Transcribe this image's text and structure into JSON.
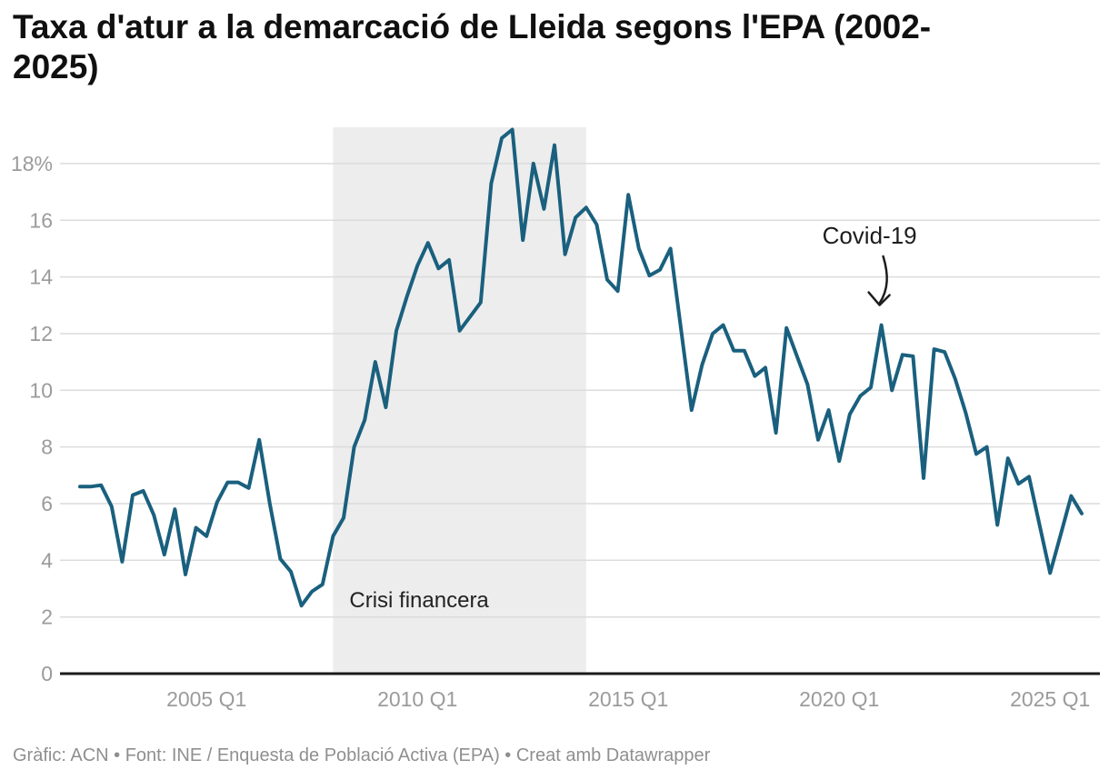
{
  "header": {
    "title_line1": "Taxa d'atur a la demarcació de Lleida segons l'EPA (2002-",
    "title_line2": "2025)"
  },
  "footer": {
    "text": "Gràfic: ACN • Font: INE / Enquesta de Població Activa (EPA) • Creat amb Datawrapper"
  },
  "chart_data": {
    "type": "line",
    "title": "Taxa d'atur a la demarcació de Lleida segons l'EPA (2002-2025)",
    "unit": "%",
    "x": [
      "2002 Q1",
      "2002 Q2",
      "2002 Q3",
      "2002 Q4",
      "2003 Q1",
      "2003 Q2",
      "2003 Q3",
      "2003 Q4",
      "2004 Q1",
      "2004 Q2",
      "2004 Q3",
      "2004 Q4",
      "2005 Q1",
      "2005 Q2",
      "2005 Q3",
      "2005 Q4",
      "2006 Q1",
      "2006 Q2",
      "2006 Q3",
      "2006 Q4",
      "2007 Q1",
      "2007 Q2",
      "2007 Q3",
      "2007 Q4",
      "2008 Q1",
      "2008 Q2",
      "2008 Q3",
      "2008 Q4",
      "2009 Q1",
      "2009 Q2",
      "2009 Q3",
      "2009 Q4",
      "2010 Q1",
      "2010 Q2",
      "2010 Q3",
      "2010 Q4",
      "2011 Q1",
      "2011 Q2",
      "2011 Q3",
      "2011 Q4",
      "2012 Q1",
      "2012 Q2",
      "2012 Q3",
      "2012 Q4",
      "2013 Q1",
      "2013 Q2",
      "2013 Q3",
      "2013 Q4",
      "2014 Q1",
      "2014 Q2",
      "2014 Q3",
      "2014 Q4",
      "2015 Q1",
      "2015 Q2",
      "2015 Q3",
      "2015 Q4",
      "2016 Q1",
      "2016 Q2",
      "2016 Q3",
      "2016 Q4",
      "2017 Q1",
      "2017 Q2",
      "2017 Q3",
      "2017 Q4",
      "2018 Q1",
      "2018 Q2",
      "2018 Q3",
      "2018 Q4",
      "2019 Q1",
      "2019 Q2",
      "2019 Q3",
      "2019 Q4",
      "2020 Q1",
      "2020 Q2",
      "2020 Q3",
      "2020 Q4",
      "2021 Q1",
      "2021 Q2",
      "2021 Q3",
      "2021 Q4",
      "2022 Q1",
      "2022 Q2",
      "2022 Q3",
      "2022 Q4",
      "2023 Q1",
      "2023 Q2",
      "2023 Q3",
      "2023 Q4",
      "2024 Q1",
      "2024 Q2",
      "2024 Q3",
      "2024 Q4",
      "2025 Q1",
      "2025 Q2",
      "2025 Q3",
      "2025 Q4"
    ],
    "values": [
      6.6,
      6.6,
      6.65,
      5.9,
      3.95,
      6.3,
      6.45,
      5.6,
      4.2,
      5.8,
      3.5,
      5.15,
      4.85,
      6.05,
      6.75,
      6.75,
      6.55,
      8.25,
      6.0,
      4.05,
      3.6,
      2.4,
      2.9,
      3.15,
      4.85,
      5.5,
      8.0,
      8.95,
      11.0,
      9.4,
      12.1,
      13.3,
      14.4,
      15.2,
      14.3,
      14.6,
      12.1,
      12.6,
      13.1,
      17.3,
      18.9,
      19.2,
      15.3,
      18.0,
      16.4,
      18.65,
      14.8,
      16.1,
      16.45,
      15.85,
      13.9,
      13.5,
      16.9,
      15.0,
      14.05,
      14.25,
      15.0,
      12.15,
      9.3,
      10.9,
      12.0,
      12.3,
      11.4,
      11.4,
      10.5,
      10.8,
      8.5,
      12.2,
      11.2,
      10.2,
      8.25,
      9.3,
      7.5,
      9.15,
      9.8,
      10.1,
      12.3,
      10.0,
      11.25,
      11.2,
      6.9,
      11.45,
      11.35,
      10.4,
      9.2,
      7.75,
      8.0,
      5.25,
      7.6,
      6.7,
      6.95,
      5.25,
      3.55,
      4.9,
      6.27,
      5.65
    ],
    "ylim": [
      0,
      19.3
    ],
    "y_ticks": [
      0,
      2,
      4,
      6,
      8,
      10,
      12,
      14,
      16,
      18
    ],
    "y_tick_labels": [
      "0",
      "2",
      "4",
      "6",
      "8",
      "10",
      "12",
      "14",
      "16",
      "18%"
    ],
    "x_tick_labels": [
      "2005 Q1",
      "2010 Q1",
      "2015 Q1",
      "2020 Q1",
      "2025 Q1"
    ],
    "grid": "horizontal",
    "legend": "none",
    "line_color": "#1a607e",
    "highlight_range": {
      "from": "2008 Q1",
      "to": "2014 Q1",
      "label": "Crisi financera",
      "color": "#ededed"
    },
    "annotation": {
      "text": "Covid-19",
      "points_to": "2021 Q1",
      "value_at_target": 12.3
    }
  },
  "colors": {
    "grid": "#dcdcdc",
    "axis": "#1a1a1a",
    "tick_text": "#9b9b9b",
    "annotation_text": "#1d1d1d",
    "band_label_text": "#222222"
  }
}
